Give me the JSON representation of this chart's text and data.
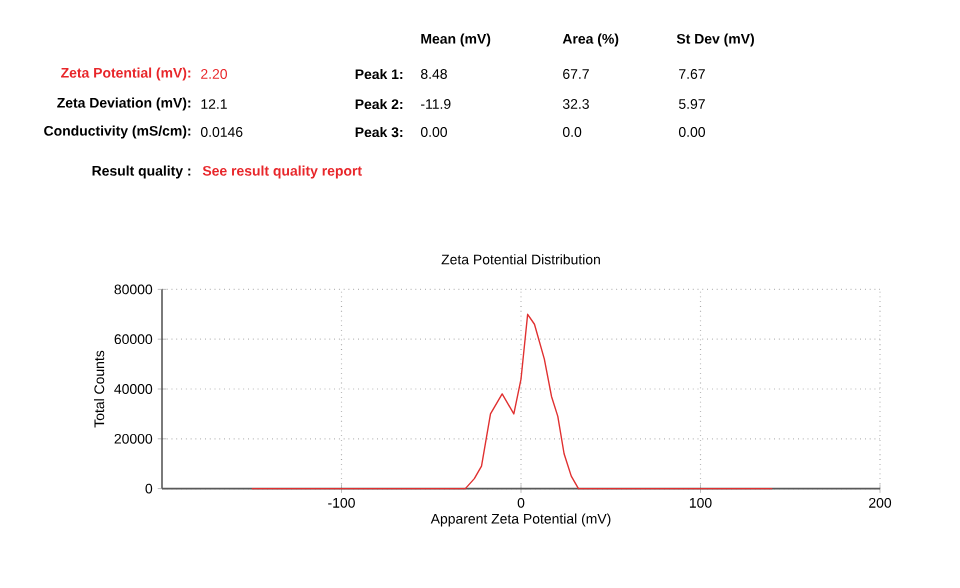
{
  "chart_data": {
    "type": "line",
    "title": "Zeta Potential Distribution",
    "xlabel": "Apparent Zeta Potential (mV)",
    "ylabel": "Total Counts",
    "x": [
      -150,
      -31,
      -26,
      -22,
      -17,
      -10.5,
      -4,
      0,
      3.7,
      7.5,
      13,
      17,
      20.5,
      24,
      28,
      32,
      140
    ],
    "series": [
      {
        "color": "#e03030",
        "values": [
          0,
          0,
          4000,
          9000,
          30000,
          38000,
          30000,
          44000,
          70000,
          66000,
          52000,
          37000,
          29000,
          14000,
          5000,
          0,
          0
        ]
      }
    ],
    "xlim": [
      -200,
      200
    ],
    "xticks": [
      -100,
      0,
      100,
      200
    ],
    "ylim": [
      0,
      80000
    ],
    "yticks": [
      0,
      20000,
      40000,
      60000,
      80000
    ],
    "grid": true,
    "annotations": [
      "Mean (mV)",
      "Area (%)",
      "St Dev (mV)",
      "Zeta Potential (mV):",
      "2.20",
      "Peak 1:",
      "8.48",
      "67.7",
      "7.67",
      "Zeta Deviation (mV):",
      "12.1",
      "Peak 2:",
      "-11.9",
      "32.3",
      "5.97",
      "Conductivity (mS/cm):",
      "0.0146",
      "Peak 3:",
      "0.00",
      "0.0",
      "0.00",
      "Result quality :",
      "See result quality report"
    ]
  }
}
